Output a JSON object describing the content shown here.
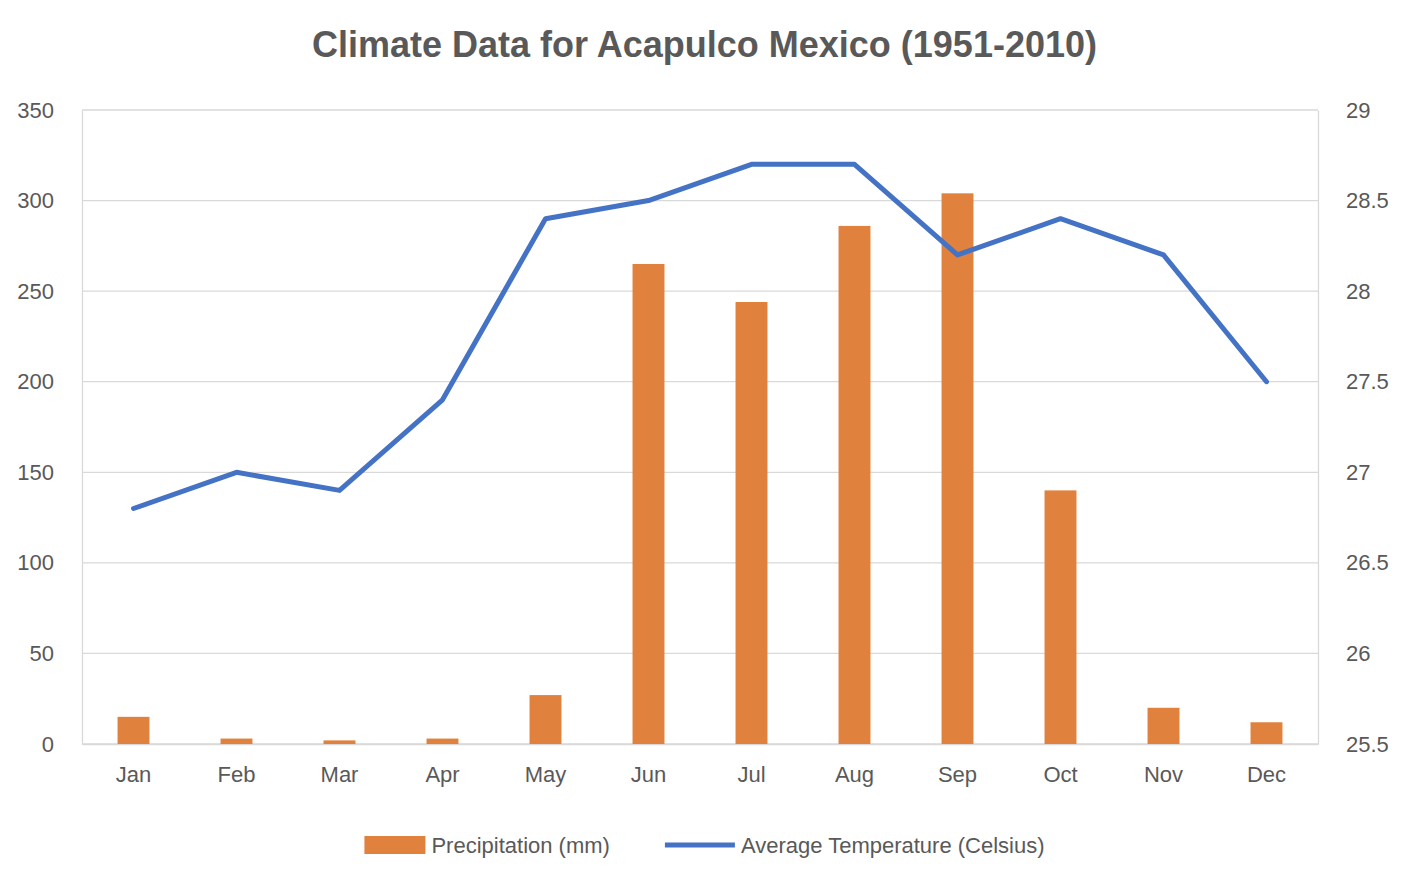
{
  "chart_data": {
    "type": "bar",
    "title": "Climate Data for Acapulco Mexico (1951-2010)",
    "categories": [
      "Jan",
      "Feb",
      "Mar",
      "Apr",
      "May",
      "Jun",
      "Jul",
      "Aug",
      "Sep",
      "Oct",
      "Nov",
      "Dec"
    ],
    "series": [
      {
        "name": "Precipitation (mm)",
        "type": "bar",
        "color": "#e0823d",
        "values": [
          15,
          3,
          2,
          3,
          27,
          265,
          244,
          286,
          304,
          140,
          20,
          12
        ]
      },
      {
        "name": "Average Temperature (Celsius)",
        "type": "line",
        "color": "#4472c4",
        "axis": "y2",
        "values": [
          26.8,
          27.0,
          26.9,
          27.4,
          28.4,
          28.5,
          28.7,
          28.7,
          28.2,
          28.4,
          28.2,
          27.5
        ]
      }
    ],
    "ylim": [
      0,
      350
    ],
    "yticks": [
      0,
      50,
      100,
      150,
      200,
      250,
      300,
      350
    ],
    "y2lim": [
      25.5,
      29
    ],
    "y2ticks": [
      25.5,
      26,
      26.5,
      27,
      27.5,
      28,
      28.5,
      29
    ],
    "grid": true,
    "legend": "bottom"
  }
}
